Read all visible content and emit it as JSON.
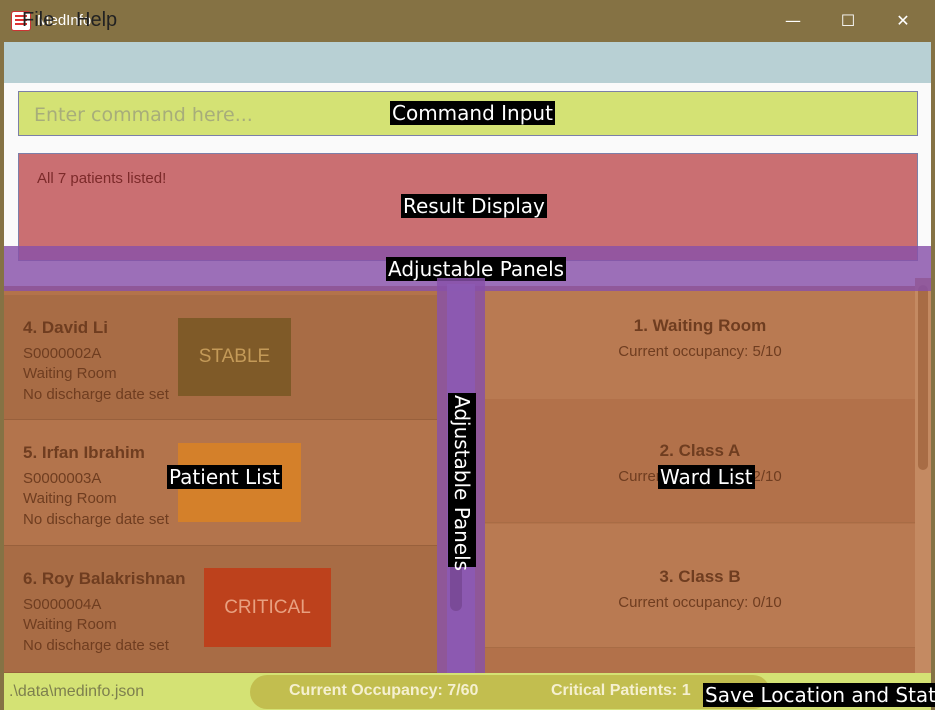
{
  "window": {
    "title": "MedInfo",
    "minimize": "—",
    "maximize": "☐",
    "close": "✕"
  },
  "menu": {
    "items": [
      "File",
      "Help"
    ]
  },
  "command": {
    "placeholder": "Enter command here..."
  },
  "result": {
    "text": "All 7 patients listed!"
  },
  "patients": [
    {
      "name": "4.  David Li",
      "nric": "S0000002A",
      "ward": "Waiting Room",
      "discharge": "No discharge date set",
      "status": "STABLE",
      "status_color": "#7f5a28",
      "status_text_color": "#c49a58"
    },
    {
      "name": "5.  Irfan Ibrahim",
      "nric": "S0000003A",
      "ward": "Waiting Room",
      "discharge": "No discharge date set",
      "status": "",
      "status_color": "#d4802a",
      "status_text_color": "#ffffff"
    },
    {
      "name": "6.  Roy Balakrishnan",
      "nric": "S0000004A",
      "ward": "Waiting Room",
      "discharge": "No discharge date set",
      "status": "CRITICAL",
      "status_color": "#bd411c",
      "status_text_color": "#e8a080"
    }
  ],
  "wards": [
    {
      "name": "1.  Waiting Room",
      "occupancy": "Current occupancy: 5/10"
    },
    {
      "name": "2.  Class A",
      "occupancy": "Current occupancy: 2/10"
    },
    {
      "name": "3.  Class B",
      "occupancy": "Current occupancy: 0/10"
    }
  ],
  "status": {
    "save_path": ".\\data\\medinfo.json",
    "occupancy": "Current Occupancy: 7/60",
    "critical": "Critical Patients: 1"
  },
  "annotations": {
    "command_input": "Command Input",
    "result_display": "Result Display",
    "adjustable_panels": "Adjustable Panels",
    "patient_list": "Patient List",
    "ward_list": "Ward List",
    "save_location": "Save Location and Stats"
  },
  "colors": {
    "titlebar": "#857244",
    "menubar": "#b8d0d4",
    "command_overlay": "#d4e274",
    "result_overlay": "#ca6f72",
    "panel_overlay": "#8750aa"
  }
}
